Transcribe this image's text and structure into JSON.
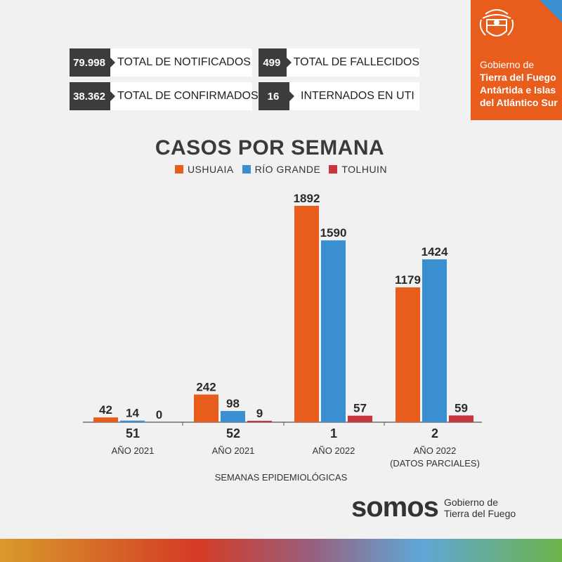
{
  "stats": [
    {
      "value": "79.998",
      "label": "TOTAL DE NOTIFICADOS"
    },
    {
      "value": "499",
      "label": "TOTAL DE FALLECIDOS"
    },
    {
      "value": "38.362",
      "label": "TOTAL DE CONFIRMADOS"
    },
    {
      "value": "16",
      "label": "INTERNADOS EN UTI"
    }
  ],
  "government": {
    "line1": "Gobierno de",
    "line2": "Tierra del Fuego",
    "line3": "Antártida e Islas",
    "line4": "del Atlántico Sur"
  },
  "footer": {
    "brand": "somos",
    "sub1": "Gobierno de",
    "sub2": "Tierra del Fuego"
  },
  "colors": {
    "ushuaia": "#e85d1c",
    "rio_grande": "#3a8fd0",
    "tolhuin": "#c8353c"
  },
  "chart_data": {
    "type": "bar",
    "title": "CASOS POR SEMANA",
    "xlabel": "SEMANAS EPIDEMIOLÓGICAS",
    "categories": [
      "51",
      "52",
      "1",
      "2"
    ],
    "category_sublabels": [
      [
        "AÑO 2021"
      ],
      [
        "AÑO 2021"
      ],
      [
        "AÑO 2022"
      ],
      [
        "AÑO 2022",
        "(DATOS PARCIALES)"
      ]
    ],
    "series": [
      {
        "name": "USHUAIA",
        "values": [
          42,
          242,
          1892,
          1179
        ]
      },
      {
        "name": "RÍO GRANDE",
        "values": [
          14,
          98,
          1590,
          1424
        ]
      },
      {
        "name": "TOLHUIN",
        "values": [
          0,
          9,
          57,
          59
        ]
      }
    ],
    "ylim": [
      0,
      1892
    ],
    "legend_position": "top-center",
    "grid": false
  }
}
